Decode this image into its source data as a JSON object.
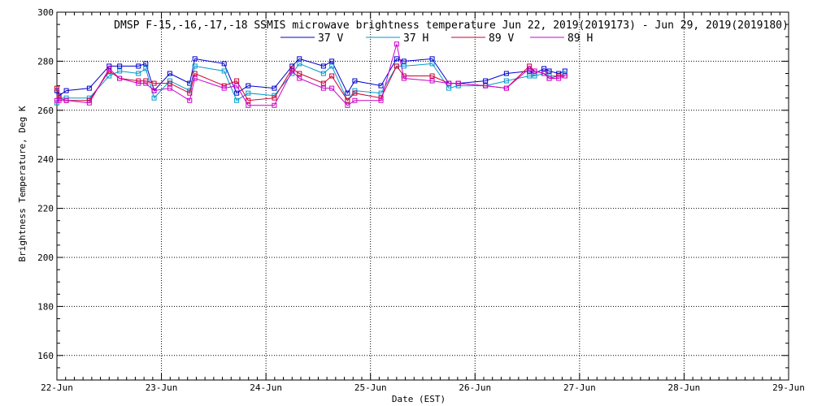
{
  "chart_data": {
    "type": "line",
    "title": "DMSP F-15,-16,-17,-18 SSMIS microwave brightness temperature Jun 22, 2019(2019173) - Jun 29, 2019(2019180)",
    "xlabel": "Date (EST)",
    "ylabel": "Brightness Temperature, Deg K",
    "x_tick_labels": [
      "22-Jun",
      "23-Jun",
      "24-Jun",
      "25-Jun",
      "26-Jun",
      "27-Jun",
      "28-Jun",
      "29-Jun"
    ],
    "y_ticks": [
      160,
      180,
      200,
      220,
      240,
      260,
      280,
      300
    ],
    "xlim": [
      0,
      7
    ],
    "ylim": [
      150,
      300
    ],
    "grid": true,
    "legend_position": "top",
    "x_units": "days since 22-Jun",
    "x": [
      0.0,
      0.02,
      0.09,
      0.31,
      0.5,
      0.6,
      0.78,
      0.85,
      0.93,
      1.08,
      1.27,
      1.32,
      1.6,
      1.72,
      1.83,
      2.08,
      2.25,
      2.32,
      2.55,
      2.63,
      2.78,
      2.85,
      3.1,
      3.25,
      3.32,
      3.59,
      3.75,
      3.84,
      4.1,
      4.3,
      4.52,
      4.57,
      4.66,
      4.71,
      4.8,
      4.86
    ],
    "series": [
      {
        "name": "37 V",
        "color": "#0000cc",
        "values": [
          268,
          266,
          268,
          269,
          278,
          278,
          278,
          279,
          268,
          275,
          271,
          281,
          279,
          267,
          270,
          269,
          278,
          281,
          278,
          280,
          267,
          272,
          270,
          281,
          280,
          281,
          271,
          271,
          272,
          275,
          276,
          275,
          277,
          276,
          275,
          276
        ]
      },
      {
        "name": "37 H",
        "color": "#0099cc",
        "values": [
          263,
          265,
          265,
          265,
          274,
          276,
          275,
          277,
          265,
          272,
          268,
          278,
          276,
          264,
          267,
          266,
          275,
          279,
          275,
          278,
          264,
          268,
          267,
          278,
          278,
          279,
          269,
          270,
          270,
          272,
          274,
          274,
          275,
          274,
          274,
          275
        ]
      },
      {
        "name": "89 V",
        "color": "#cc0033",
        "values": [
          269,
          265,
          264,
          264,
          276,
          273,
          272,
          272,
          271,
          271,
          267,
          275,
          270,
          272,
          264,
          265,
          277,
          275,
          271,
          274,
          264,
          267,
          265,
          278,
          274,
          274,
          271,
          271,
          270,
          269,
          278,
          276,
          275,
          273,
          274,
          274
        ]
      },
      {
        "name": "89 H",
        "color": "#cc00cc",
        "values": [
          264,
          264,
          264,
          263,
          277,
          273,
          271,
          271,
          268,
          269,
          264,
          273,
          269,
          270,
          262,
          262,
          276,
          273,
          269,
          269,
          262,
          264,
          264,
          287,
          273,
          272,
          271,
          271,
          270,
          269,
          277,
          276,
          275,
          273,
          273,
          274
        ]
      }
    ]
  }
}
